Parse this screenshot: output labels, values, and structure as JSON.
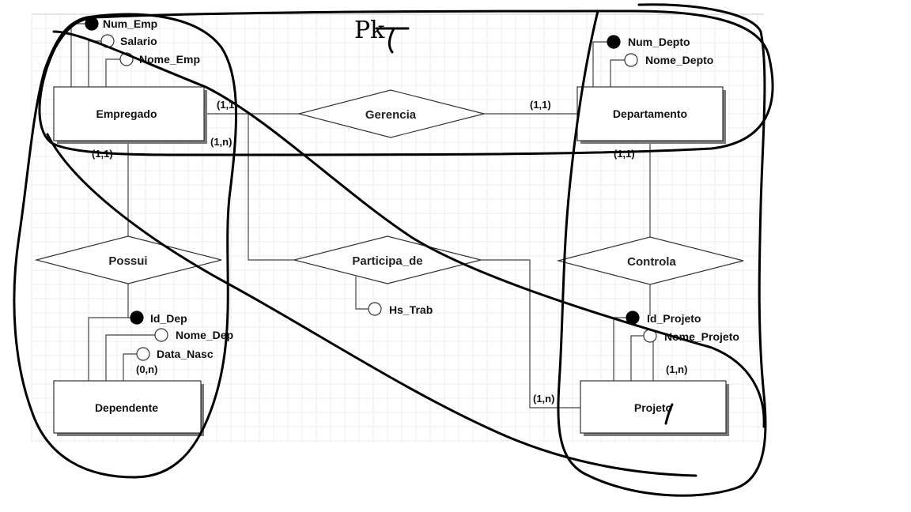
{
  "diagram": {
    "handwritten_note": "Pk",
    "entities": [
      {
        "id": "empregado",
        "label": "Empregado"
      },
      {
        "id": "departamento",
        "label": "Departamento"
      },
      {
        "id": "dependente",
        "label": "Dependente"
      },
      {
        "id": "projeto",
        "label": "Projeto"
      }
    ],
    "relationships": [
      {
        "id": "gerencia",
        "label": "Gerencia"
      },
      {
        "id": "possui",
        "label": "Possui"
      },
      {
        "id": "participa",
        "label": "Participa_de"
      },
      {
        "id": "controla",
        "label": "Controla"
      }
    ],
    "attributes": [
      {
        "id": "num_emp",
        "label": "Num_Emp",
        "key": true
      },
      {
        "id": "salario",
        "label": "Salario",
        "key": false
      },
      {
        "id": "nome_emp",
        "label": "Nome_Emp",
        "key": false
      },
      {
        "id": "num_depto",
        "label": "Num_Depto",
        "key": true
      },
      {
        "id": "nome_depto",
        "label": "Nome_Depto",
        "key": false
      },
      {
        "id": "id_dep",
        "label": "Id_Dep",
        "key": true
      },
      {
        "id": "nome_dep",
        "label": "Nome_Dep",
        "key": false
      },
      {
        "id": "data_nasc",
        "label": "Data_Nasc",
        "key": false
      },
      {
        "id": "id_projeto",
        "label": "Id_Projeto",
        "key": true
      },
      {
        "id": "nome_projeto",
        "label": "Nome_Projeto",
        "key": false
      },
      {
        "id": "hs_trab",
        "label": "Hs_Trab",
        "key": false
      }
    ],
    "cardinalities": [
      {
        "id": "emp_gerencia",
        "label": "(1,1)"
      },
      {
        "id": "gerencia_depto",
        "label": "(1,1)"
      },
      {
        "id": "emp_participa",
        "label": "(1,n)"
      },
      {
        "id": "emp_possui",
        "label": "(1,1)"
      },
      {
        "id": "depto_controla",
        "label": "(1,1)"
      },
      {
        "id": "dependente_possui",
        "label": "(0,n)"
      },
      {
        "id": "projeto_controla",
        "label": "(1,n)"
      },
      {
        "id": "projeto_participa",
        "label": "(1,n)"
      }
    ]
  }
}
